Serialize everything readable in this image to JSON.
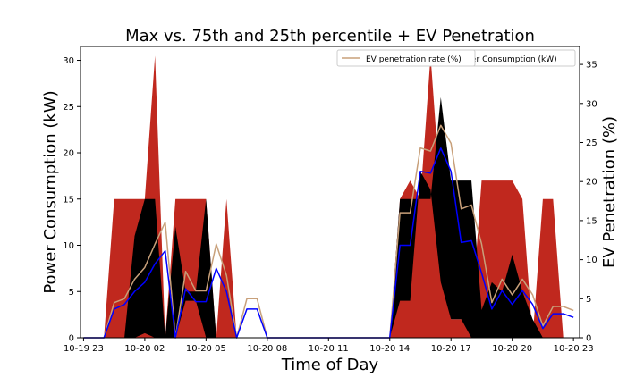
{
  "chart_data": {
    "type": "area",
    "title": "Max vs. 75th and 25th percentile + EV Penetration",
    "xlabel": "Time of Day",
    "ylabel_left": "Power Consumption (kW)",
    "ylabel_right": "EV Penetration (%)",
    "x_tick_labels": [
      "10-19 23",
      "10-20 02",
      "10-20 05",
      "10-20 08",
      "10-20 11",
      "10-20 14",
      "10-20 17",
      "10-20 20",
      "10-20 23"
    ],
    "x_tick_hours": [
      0,
      3,
      6,
      9,
      12,
      15,
      18,
      21,
      24
    ],
    "xlim_hours": [
      -0.15,
      24.3
    ],
    "ylim_left": [
      0,
      31.5
    ],
    "ylim_right": [
      0,
      37.3
    ],
    "yticks_left": [
      0,
      5,
      10,
      15,
      20,
      25,
      30
    ],
    "yticks_right": [
      0,
      5,
      10,
      15,
      20,
      25,
      30,
      35
    ],
    "legend": [
      {
        "label": "EV penetration rate (%)",
        "color": "#c8a07a"
      },
      {
        "label": "Power Consumption (kW)",
        "color": "#0000ff"
      }
    ],
    "colors": {
      "max": "#c0281e",
      "p75": "#000000",
      "power": "#0000ff",
      "ev": "#c8a07a"
    },
    "x_hours": [
      0,
      0.5,
      1,
      1.5,
      2,
      2.5,
      3,
      3.5,
      4,
      4.5,
      5,
      5.5,
      6,
      6.5,
      7,
      7.5,
      8,
      8.5,
      9,
      9.5,
      10,
      10.5,
      11,
      11.5,
      12,
      12.5,
      13,
      13.5,
      14,
      14.5,
      15,
      15.5,
      16,
      16.5,
      17,
      17.5,
      18,
      18.5,
      19,
      19.5,
      20,
      20.5,
      21,
      21.5,
      22,
      22.5,
      23,
      23.5,
      24
    ],
    "series": [
      {
        "name": "Max",
        "values": [
          0,
          0,
          0,
          15,
          15,
          15,
          15,
          30.5,
          0,
          15,
          15,
          15,
          15,
          0,
          15,
          0,
          0,
          0,
          0,
          0,
          0,
          0,
          0,
          0,
          0,
          0,
          0,
          0,
          0,
          0,
          0,
          15,
          17,
          15,
          30.5,
          15,
          2,
          2,
          2,
          17,
          17,
          17,
          17,
          15,
          0,
          15,
          15,
          0,
          0
        ]
      },
      {
        "name": "75th percentile",
        "values": [
          0,
          0,
          0,
          0,
          0,
          11,
          15,
          15,
          0,
          12,
          5,
          5,
          15,
          0,
          0,
          0,
          0,
          0,
          0,
          0,
          0,
          0,
          0,
          0,
          0,
          0,
          0,
          0,
          0,
          0,
          0,
          15,
          15,
          15,
          15,
          26,
          17,
          17,
          17,
          3,
          6,
          5,
          9,
          5,
          2,
          0,
          0,
          0,
          0
        ]
      },
      {
        "name": "25th percentile",
        "values": [
          0,
          0,
          0,
          0,
          0,
          0,
          0.5,
          0,
          0,
          0,
          4,
          4,
          0,
          0,
          0,
          0,
          0,
          0,
          0,
          0,
          0,
          0,
          0,
          0,
          0,
          0,
          0,
          0,
          0,
          0,
          0,
          4,
          4,
          18,
          16,
          6,
          2,
          2,
          0,
          0,
          0,
          0,
          0,
          0,
          0,
          0,
          0,
          0,
          0
        ]
      },
      {
        "name": "Power Consumption (kW)",
        "axis": "left",
        "values": [
          0,
          0,
          0,
          3.1,
          3.6,
          5,
          6,
          8,
          9.4,
          0,
          5.3,
          3.9,
          3.9,
          7.5,
          5,
          0,
          3.1,
          3.1,
          0,
          0,
          0,
          0,
          0,
          0,
          0,
          0,
          0,
          0,
          0,
          0,
          0,
          10,
          10,
          18,
          17.8,
          20.5,
          18,
          10.3,
          10.5,
          7,
          3.1,
          5.1,
          3.6,
          5.1,
          3.6,
          1,
          2.6,
          2.6,
          2.2
        ]
      },
      {
        "name": "EV penetration rate (%)",
        "axis": "right",
        "values": [
          0,
          0,
          0,
          4.5,
          5,
          7.5,
          9,
          12,
          14.8,
          0,
          8.5,
          6,
          6,
          12,
          8,
          0,
          5,
          5,
          0,
          0,
          0,
          0,
          0,
          0,
          0,
          0,
          0,
          0,
          0,
          0,
          0,
          16,
          16,
          24.3,
          23.9,
          27.2,
          24.9,
          16.5,
          17,
          12,
          4.5,
          7.5,
          5.5,
          7.5,
          5.5,
          1.5,
          4,
          4,
          3.5
        ]
      }
    ]
  }
}
